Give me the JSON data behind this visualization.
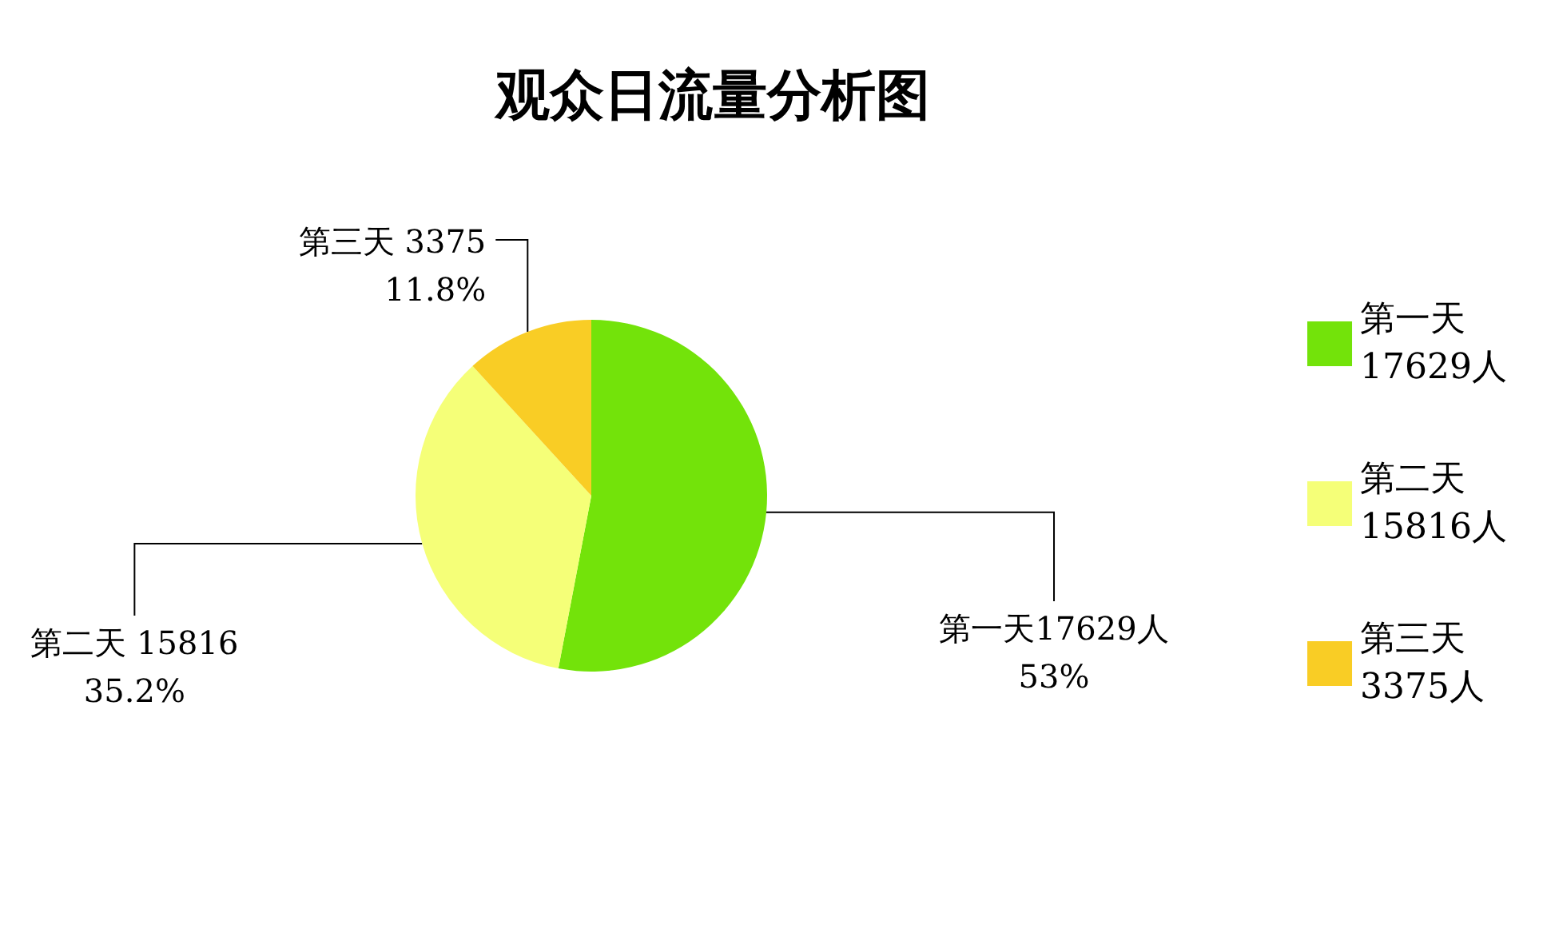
{
  "chart_data": {
    "type": "pie",
    "title": "观众日流量分析图",
    "categories": [
      "第一天\n17629人",
      "第二天\n15816人",
      "第三天\n3375人"
    ],
    "values": [
      53,
      35.2,
      11.8
    ],
    "colors": [
      "#73e30a",
      "#f5ff78",
      "#f9cd25"
    ],
    "value_labels": [
      "第一天17629人\n53%",
      "第二天 15816\n35.2%",
      "第三天 3375\n11.8%"
    ],
    "legend": "right"
  }
}
